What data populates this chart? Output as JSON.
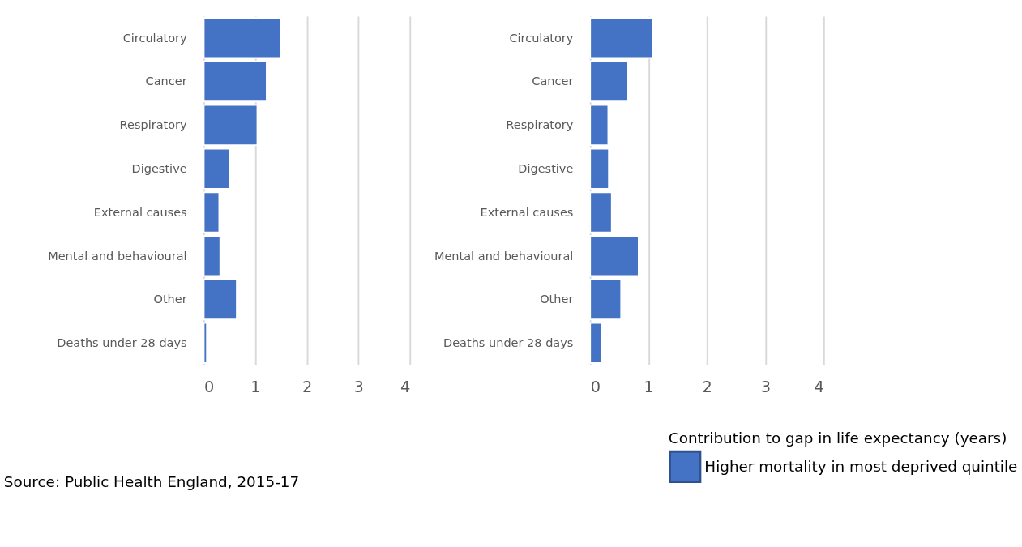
{
  "chart_data": [
    {
      "type": "bar",
      "orientation": "horizontal",
      "categories": [
        "Circulatory",
        "Cancer",
        "Respiratory",
        "Digestive",
        "External causes",
        "Mental and behavioural",
        "Other",
        "Deaths under 28 days"
      ],
      "series": [
        {
          "color": "#4472c4",
          "values": [
            1.5,
            1.22,
            1.04,
            0.5,
            0.3,
            0.32,
            0.64,
            0.06
          ]
        }
      ],
      "xlim": [
        0,
        4
      ],
      "xticks": [
        0,
        1,
        2,
        3,
        4
      ],
      "grid": "x",
      "annotations": [
        "Source: Public Health England, 2015-17"
      ]
    },
    {
      "type": "bar",
      "orientation": "horizontal",
      "categories": [
        "Circulatory",
        "Cancer",
        "Respiratory",
        "Digestive",
        "External causes",
        "Mental and behavioural",
        "Other",
        "Deaths under 28 days"
      ],
      "series": [
        {
          "name": "Higher mortality in most deprived quintile",
          "color": "#4472c4",
          "values": [
            1.07,
            0.65,
            0.31,
            0.32,
            0.37,
            0.83,
            0.53,
            0.2
          ]
        }
      ],
      "xlim": [
        0,
        4
      ],
      "xticks": [
        0,
        1,
        2,
        3,
        4
      ],
      "grid": "x",
      "legend": "bottom",
      "legend_title": "Contribution to gap in life expectancy (years)"
    }
  ]
}
